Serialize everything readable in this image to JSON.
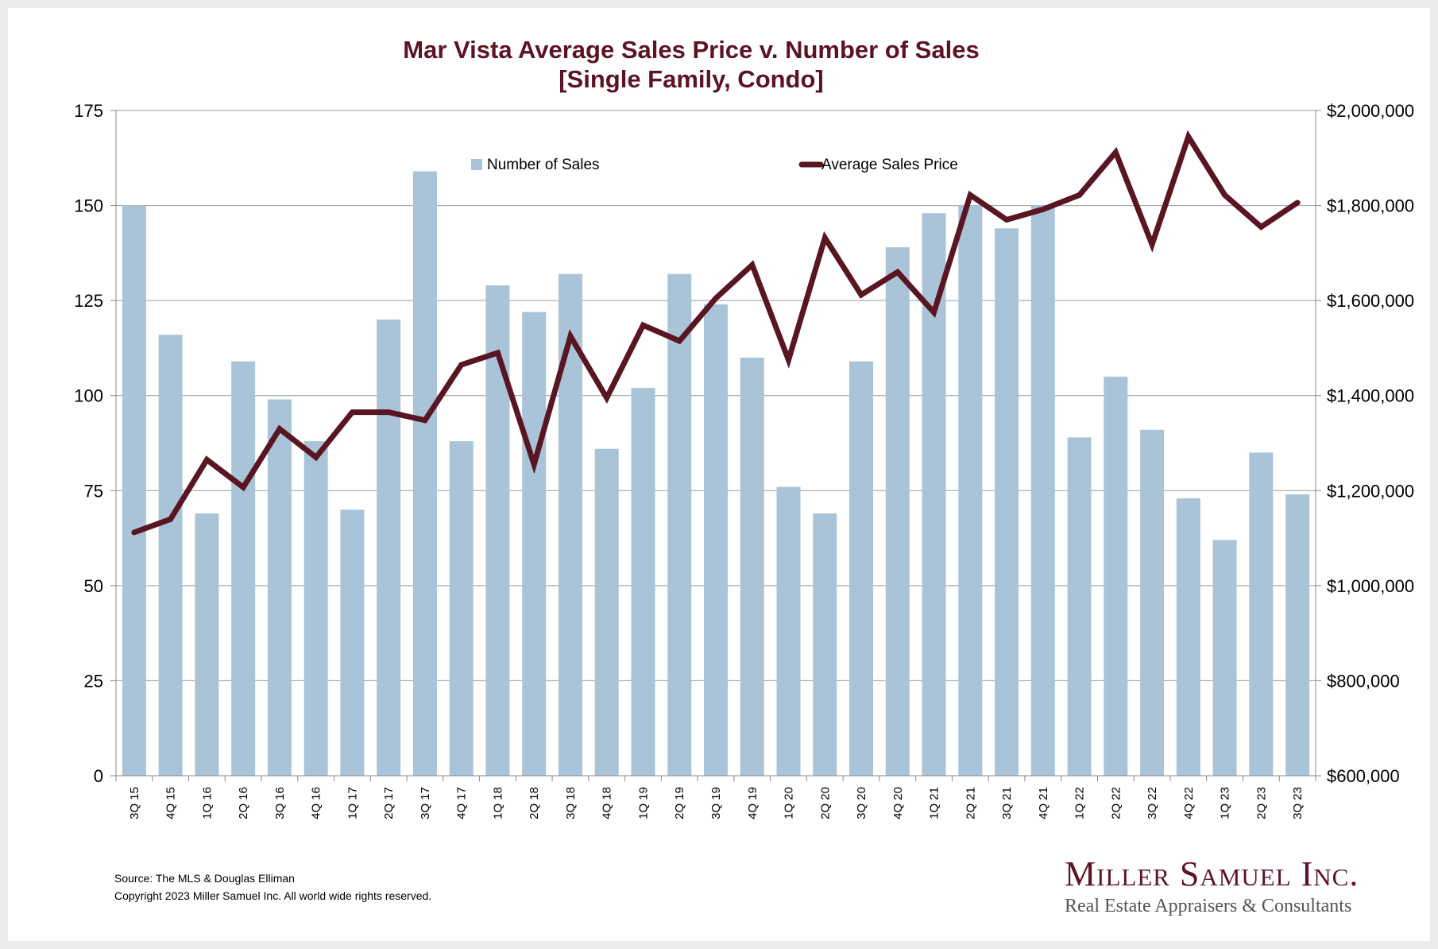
{
  "chart_data": {
    "type": "bar",
    "title_lines": [
      "Mar Vista Average Sales Price v. Number of Sales",
      "[Single Family, Condo]"
    ],
    "categories": [
      "3Q 15",
      "4Q 15",
      "1Q 16",
      "2Q 16",
      "3Q 16",
      "4Q 16",
      "1Q 17",
      "2Q 17",
      "3Q 17",
      "4Q 17",
      "1Q 18",
      "2Q 18",
      "3Q 18",
      "4Q 18",
      "1Q 19",
      "2Q 19",
      "3Q 19",
      "4Q 19",
      "1Q 20",
      "2Q 20",
      "3Q 20",
      "4Q 20",
      "1Q 21",
      "2Q 21",
      "3Q 21",
      "4Q 21",
      "1Q 22",
      "2Q 22",
      "3Q 22",
      "4Q 22",
      "1Q 23",
      "2Q 23",
      "3Q 23"
    ],
    "series": [
      {
        "name": "Number of Sales",
        "type": "bar",
        "axis": "left",
        "values": [
          150,
          116,
          69,
          109,
          99,
          88,
          70,
          120,
          159,
          88,
          129,
          122,
          132,
          86,
          102,
          132,
          124,
          110,
          76,
          69,
          109,
          139,
          148,
          150,
          144,
          150,
          89,
          105,
          91,
          73,
          62,
          85,
          74
        ]
      },
      {
        "name": "Average Sales Price",
        "type": "line",
        "axis": "right",
        "values": [
          1112000,
          1140000,
          1265000,
          1207000,
          1330000,
          1270000,
          1365000,
          1365000,
          1348000,
          1465000,
          1490000,
          1255000,
          1525000,
          1395000,
          1548000,
          1515000,
          1605000,
          1675000,
          1475000,
          1732000,
          1612000,
          1660000,
          1575000,
          1822000,
          1770000,
          1792000,
          1822000,
          1912000,
          1718000,
          1945000,
          1822000,
          1755000,
          1806000
        ]
      }
    ],
    "y_left": {
      "min": 0,
      "max": 175,
      "ticks": [
        "0",
        "25",
        "50",
        "75",
        "100",
        "125",
        "150",
        "175"
      ]
    },
    "y_right": {
      "min": 600000,
      "max": 2000000,
      "ticks": [
        "$600,000",
        "$800,000",
        "$1,000,000",
        "$1,200,000",
        "$1,400,000",
        "$1,600,000",
        "$1,800,000",
        "$2,000,000"
      ]
    },
    "grid": true,
    "legend_position": "top-center",
    "colors": {
      "bar": "#a9c4d8",
      "line": "#5a1522",
      "title": "#5c1424",
      "grid": "#9a9a9a"
    }
  },
  "footer": {
    "source": "Source: The MLS & Douglas Elliman",
    "copyright": "Copyright 2023 Miller Samuel Inc.  All world wide rights reserved."
  },
  "logo": {
    "name": "Miller Samuel Inc.",
    "tagline": "Real Estate Appraisers & Consultants"
  }
}
